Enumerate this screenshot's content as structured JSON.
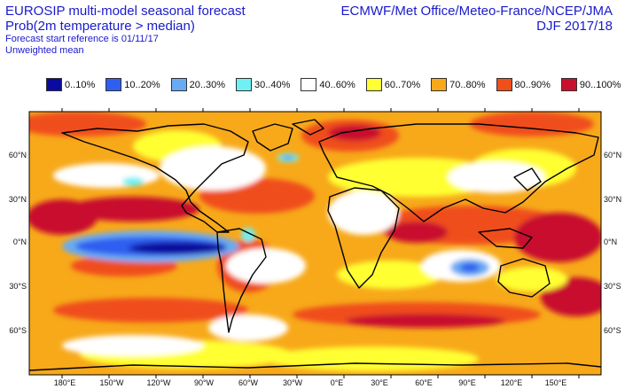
{
  "header": {
    "title_line1": "EUROSIP multi-model seasonal forecast",
    "title_line2": "Prob(2m temperature > median)",
    "subtitle_line1": "Forecast start reference is 01/11/17",
    "subtitle_line2": "Unweighted mean",
    "source": "ECMWF/Met Office/Meteo-France/NCEP/JMA",
    "period": "DJF 2017/18"
  },
  "legend": [
    {
      "label": "0..10%",
      "color": "#0a0a9e"
    },
    {
      "label": "10..20%",
      "color": "#2f5ff0"
    },
    {
      "label": "20..30%",
      "color": "#6aaaf2"
    },
    {
      "label": "30..40%",
      "color": "#6ef0f4"
    },
    {
      "label": "40..60%",
      "color": "#ffffff"
    },
    {
      "label": "60..70%",
      "color": "#ffff33"
    },
    {
      "label": "70..80%",
      "color": "#f7a91a"
    },
    {
      "label": "80..90%",
      "color": "#f04e1a"
    },
    {
      "label": "90..100%",
      "color": "#c8102e"
    }
  ],
  "axes": {
    "lon_labels": [
      "180°E",
      "150°W",
      "120°W",
      "90°W",
      "60°W",
      "30°W",
      "0°E",
      "30°E",
      "60°E",
      "90°E",
      "120°E",
      "150°E"
    ],
    "lat_labels": [
      "60°N",
      "30°N",
      "0°N",
      "30°S",
      "60°S"
    ]
  }
}
